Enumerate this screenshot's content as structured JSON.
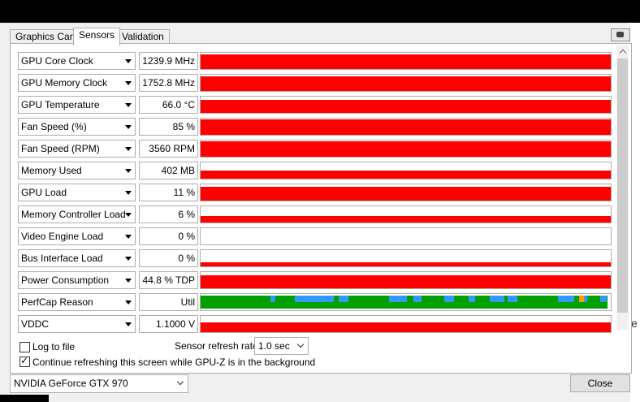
{
  "tabs": [
    {
      "label": "Graphics Card",
      "active": false
    },
    {
      "label": "Sensors",
      "active": true
    },
    {
      "label": "Validation",
      "active": false
    }
  ],
  "sensors": [
    {
      "label": "GPU Core Clock",
      "value": "1239.9 MHz",
      "fill": 0.9,
      "color": "#ff0000"
    },
    {
      "label": "GPU Memory Clock",
      "value": "1752.8 MHz",
      "fill": 0.9,
      "color": "#ff0000"
    },
    {
      "label": "GPU Temperature",
      "value": "66.0 °C",
      "fill": 0.8,
      "color": "#ff0000"
    },
    {
      "label": "Fan Speed (%)",
      "value": "85 %",
      "fill": 0.95,
      "color": "#ff0000"
    },
    {
      "label": "Fan Speed (RPM)",
      "value": "3560 RPM",
      "fill": 0.95,
      "color": "#ff0000"
    },
    {
      "label": "Memory Used",
      "value": "402 MB",
      "fill": 0.5,
      "color": "#ff0000"
    },
    {
      "label": "GPU Load",
      "value": "11 %",
      "fill": 0.85,
      "color": "#ff0000"
    },
    {
      "label": "Memory Controller Load",
      "value": "6 %",
      "fill": 0.4,
      "color": "#ff0000"
    },
    {
      "label": "Video Engine Load",
      "value": "0 %",
      "fill": 0,
      "color": "#ff0000"
    },
    {
      "label": "Bus Interface Load",
      "value": "0 %",
      "fill": 0.25,
      "color": "#ff0000"
    },
    {
      "label": "Power Consumption",
      "value": "44.8 % TDP",
      "fill": 0.8,
      "color": "#ff0000"
    },
    {
      "label": "PerfCap Reason",
      "value": "Util",
      "fill": 1,
      "color": "#00a000"
    },
    {
      "label": "VDDC",
      "value": "1.1000 V",
      "fill": 0.6,
      "color": "#ff0000"
    }
  ],
  "perfcap_colors": {
    "util": "#00a000",
    "vrel": "#3399ff",
    "pwr": "#ff9900"
  },
  "options": {
    "log_to_file": {
      "label": "Log to file",
      "checked": false
    },
    "refresh_rate_label": "Sensor refresh rate:",
    "refresh_rate_value": "1.0 sec",
    "continue_refresh": {
      "label": "Continue refreshing this screen while GPU-Z is in the background",
      "checked": true
    }
  },
  "footer": {
    "gpu_select": "NVIDIA GeForce GTX 970",
    "close_label": "Close"
  },
  "edge_text": "e",
  "icons": {
    "camera": "camera-icon",
    "dropdown": "chevron-down-icon"
  }
}
